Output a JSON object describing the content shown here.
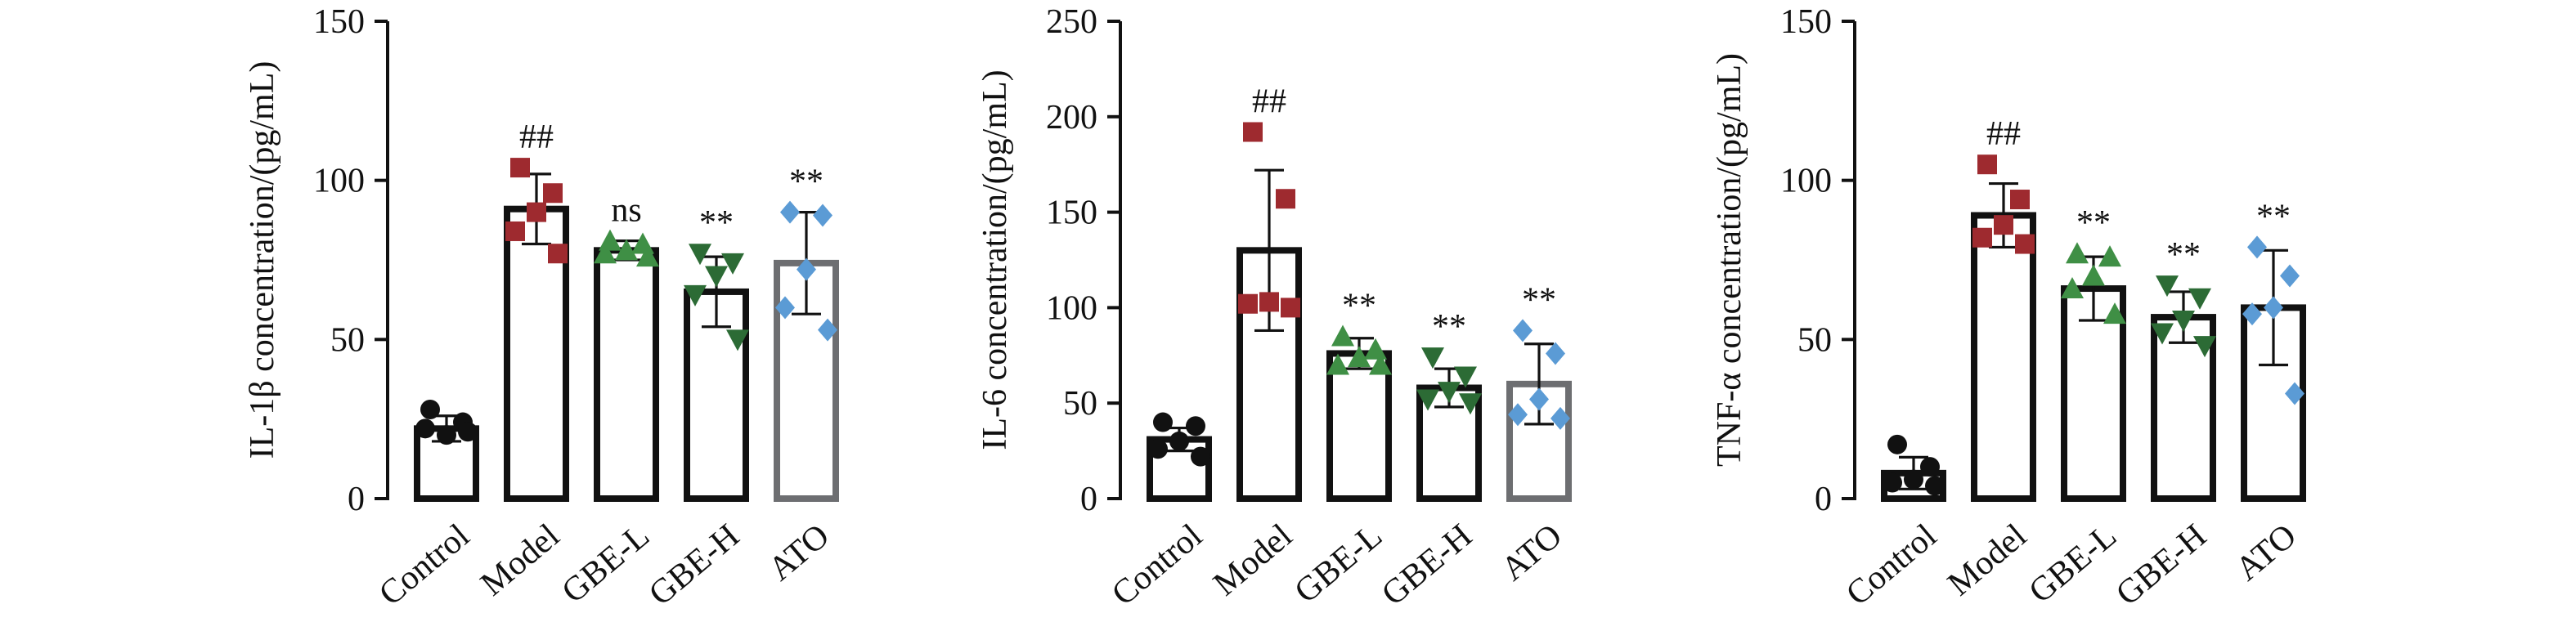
{
  "chart_data": [
    {
      "type": "bar",
      "ylabel": "IL-1β concentration/(pg/mL)",
      "categories": [
        "Control",
        "Model",
        "GBE-L",
        "GBE-H",
        "ATO"
      ],
      "values": [
        22,
        91,
        78,
        65,
        74
      ],
      "errors": [
        4,
        11,
        3,
        11,
        16
      ],
      "points": [
        [
          28,
          24,
          20,
          22,
          21
        ],
        [
          104,
          96,
          90,
          84,
          77
        ],
        [
          81,
          80,
          78,
          77,
          76
        ],
        [
          77,
          74,
          70,
          64,
          50
        ],
        [
          90,
          89,
          72,
          60,
          53
        ]
      ],
      "annotations": [
        null,
        "##",
        "ns",
        "**",
        "**"
      ],
      "bar_edge_colors": [
        "#111111",
        "#111111",
        "#111111",
        "#111111",
        "#6d6e71"
      ],
      "point_colors": [
        "#111111",
        "#9e2a2f",
        "#3f8f45",
        "#2c6b35",
        "#5b9bd5"
      ],
      "markers": [
        "circle",
        "square",
        "triangle-up",
        "triangle-down",
        "diamond"
      ],
      "ylim": [
        0,
        150
      ],
      "yticks": [
        0,
        50,
        100,
        150
      ]
    },
    {
      "type": "bar",
      "ylabel": "IL-6 concentration/(pg/mL)",
      "categories": [
        "Control",
        "Model",
        "GBE-L",
        "GBE-H",
        "ATO"
      ],
      "values": [
        31,
        130,
        76,
        58,
        60
      ],
      "errors": [
        6,
        42,
        8,
        10,
        21
      ],
      "points": [
        [
          40,
          38,
          30,
          26,
          22
        ],
        [
          192,
          157,
          103,
          102,
          100
        ],
        [
          85,
          78,
          74,
          70,
          70
        ],
        [
          74,
          64,
          56,
          52,
          50
        ],
        [
          88,
          76,
          52,
          44,
          42
        ]
      ],
      "annotations": [
        null,
        "##",
        "**",
        "**",
        "**"
      ],
      "bar_edge_colors": [
        "#111111",
        "#111111",
        "#111111",
        "#111111",
        "#6d6e71"
      ],
      "point_colors": [
        "#111111",
        "#9e2a2f",
        "#3f8f45",
        "#2c6b35",
        "#5b9bd5"
      ],
      "markers": [
        "circle",
        "square",
        "triangle-up",
        "triangle-down",
        "diamond"
      ],
      "ylim": [
        0,
        250
      ],
      "yticks": [
        0,
        50,
        100,
        150,
        200,
        250
      ]
    },
    {
      "type": "bar",
      "ylabel": "TNF-α concentration/(pg/mL)",
      "categories": [
        "Control",
        "Model",
        "GBE-L",
        "GBE-H",
        "ATO"
      ],
      "values": [
        8,
        89,
        66,
        57,
        60
      ],
      "errors": [
        5,
        10,
        10,
        8,
        18
      ],
      "points": [
        [
          17,
          10,
          6,
          5,
          4
        ],
        [
          105,
          94,
          86,
          82,
          80
        ],
        [
          77,
          76,
          70,
          66,
          58
        ],
        [
          67,
          63,
          56,
          52,
          48
        ],
        [
          79,
          70,
          60,
          58,
          33
        ]
      ],
      "annotations": [
        null,
        "##",
        "**",
        "**",
        "**"
      ],
      "bar_edge_colors": [
        "#111111",
        "#111111",
        "#111111",
        "#111111",
        "#111111"
      ],
      "point_colors": [
        "#111111",
        "#9e2a2f",
        "#3f8f45",
        "#2c6b35",
        "#5b9bd5"
      ],
      "markers": [
        "circle",
        "square",
        "triangle-up",
        "triangle-down",
        "diamond"
      ],
      "ylim": [
        0,
        150
      ],
      "yticks": [
        0,
        50,
        100,
        150
      ]
    }
  ]
}
